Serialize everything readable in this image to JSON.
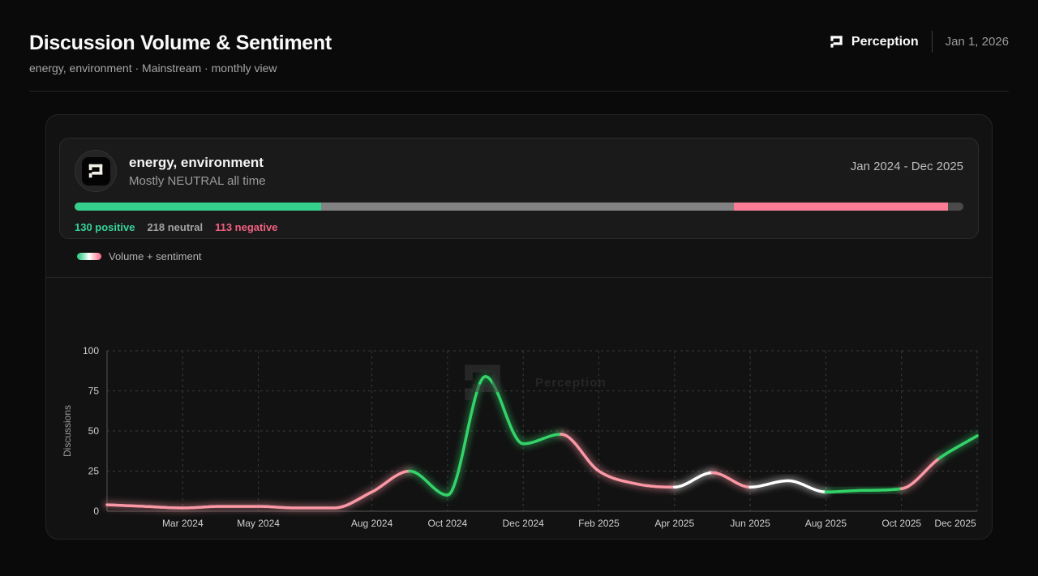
{
  "header": {
    "title": "Discussion Volume & Sentiment",
    "subtitle": "energy, environment · Mainstream · monthly view",
    "brand": "Perception",
    "date": "Jan 1, 2026"
  },
  "summary": {
    "title": "energy, environment",
    "sentiment_summary": "Mostly NEUTRAL all time",
    "date_range": "Jan 2024 - Dec 2025",
    "positive_count": 130,
    "neutral_count": 218,
    "negative_count": 113,
    "positive_label": "130 positive",
    "neutral_label": "218 neutral",
    "negative_label": "113 negative"
  },
  "legend": {
    "label": "Volume + sentiment"
  },
  "watermark": {
    "text": "Perception"
  },
  "colors": {
    "bar_positive": "#35d08c",
    "bar_neutral": "#828282",
    "bar_negative": "#fb7d95",
    "text_positive": "#36d399",
    "text_neutral": "#a3a3a3",
    "text_negative": "#f2607f",
    "line_positive": "#34d36a",
    "line_negative": "#fb98a5",
    "line_neutral": "#ffffff",
    "grid": "#3b3b3b",
    "axis": "#565656",
    "tick_text": "#cfcfcf"
  },
  "chart_data": {
    "type": "line",
    "title": "Discussion Volume & Sentiment",
    "ylabel": "Discussions",
    "ylim": [
      0,
      100
    ],
    "yticks": [
      0,
      25,
      50,
      75,
      100
    ],
    "grid": true,
    "legend_position": "top-left",
    "x": [
      "Jan 2024",
      "Feb 2024",
      "Mar 2024",
      "Apr 2024",
      "May 2024",
      "Jun 2024",
      "Jul 2024",
      "Aug 2024",
      "Sep 2024",
      "Oct 2024",
      "Nov 2024",
      "Dec 2024",
      "Jan 2025",
      "Feb 2025",
      "Mar 2025",
      "Apr 2025",
      "May 2025",
      "Jun 2025",
      "Jul 2025",
      "Aug 2025",
      "Sep 2025",
      "Oct 2025",
      "Nov 2025",
      "Dec 2025"
    ],
    "values": [
      4,
      3,
      2,
      3,
      3,
      2,
      2,
      12,
      25,
      10,
      84,
      42,
      48,
      25,
      17,
      15,
      24,
      15,
      19,
      12,
      13,
      14,
      33,
      47
    ],
    "point_sentiment": [
      "negative",
      "negative",
      "negative",
      "negative",
      "negative",
      "negative",
      "negative",
      "negative",
      "negative",
      "positive",
      "positive",
      "positive",
      "positive",
      "negative",
      "negative",
      "negative",
      "neutral",
      "negative",
      "neutral",
      "neutral",
      "positive",
      "positive",
      "negative",
      "positive"
    ],
    "xticks": [
      {
        "i": 2,
        "label": "Mar 2024"
      },
      {
        "i": 4,
        "label": "May 2024"
      },
      {
        "i": 7,
        "label": "Aug 2024"
      },
      {
        "i": 9,
        "label": "Oct 2024"
      },
      {
        "i": 11,
        "label": "Dec 2024"
      },
      {
        "i": 13,
        "label": "Feb 2025"
      },
      {
        "i": 15,
        "label": "Apr 2025"
      },
      {
        "i": 17,
        "label": "Jun 2025"
      },
      {
        "i": 19,
        "label": "Aug 2025"
      },
      {
        "i": 21,
        "label": "Oct 2025"
      },
      {
        "i": 23,
        "label": "Dec 2025"
      }
    ]
  }
}
